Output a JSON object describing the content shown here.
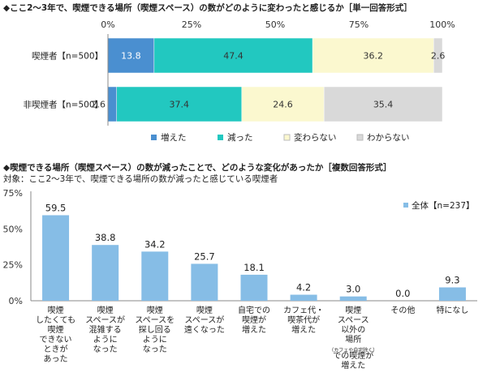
{
  "chart1": {
    "title": "◆ここ2～3年で、喫煙できる場所（喫煙スペース）の数がどのように変わったと感じるか［単一回答形式］",
    "ticks": [
      "0%",
      "25%",
      "50%",
      "75%",
      "100%"
    ],
    "legend": [
      "増えた",
      "減った",
      "変わらない",
      "わからない"
    ],
    "colors": [
      "#4a8fd0",
      "#22c8c0",
      "#fbf8cf",
      "#d9d9d9"
    ],
    "label_colors": [
      "#ffffff",
      "#333333",
      "#333333",
      "#333333"
    ]
  },
  "chart2": {
    "title": "◆喫煙できる場所（喫煙スペース）の数が減ったことで、どのような変化があったか［複数回答形式］",
    "subtitle": "対象：ここ2～3年で、喫煙できる場所の数が減ったと感じている喫煙者",
    "ticks": [
      "75%",
      "50%",
      "25%",
      "0%"
    ],
    "legend": "全体【n=237】",
    "bar_color": "#86bde6"
  },
  "chart_data": [
    {
      "type": "bar",
      "orientation": "horizontal-stacked-100",
      "title": "◆ここ2～3年で、喫煙できる場所（喫煙スペース）の数がどのように変わったと感じるか［単一回答形式］",
      "categories": [
        "喫煙者【n=500】",
        "非喫煙者【n=500】"
      ],
      "series": [
        {
          "name": "増えた",
          "values": [
            13.8,
            2.6
          ]
        },
        {
          "name": "減った",
          "values": [
            47.4,
            37.4
          ]
        },
        {
          "name": "変わらない",
          "values": [
            36.2,
            24.6
          ]
        },
        {
          "name": "わからない",
          "values": [
            2.6,
            35.4
          ]
        }
      ],
      "xlim": [
        0,
        100
      ],
      "legend_position": "bottom"
    },
    {
      "type": "bar",
      "title": "◆喫煙できる場所（喫煙スペース）の数が減ったことで、どのような変化があったか［複数回答形式］",
      "subtitle": "対象：ここ2～3年で、喫煙できる場所の数が減ったと感じている喫煙者",
      "categories": [
        [
          "喫煙",
          "したくても",
          "喫煙",
          "できない",
          "ときが",
          "あった"
        ],
        [
          "喫煙",
          "スペースが",
          "混雑する",
          "ように",
          "なった"
        ],
        [
          "喫煙",
          "スペースを",
          "探し回る",
          "ように",
          "なった"
        ],
        [
          "喫煙",
          "スペースが",
          "遠くなった"
        ],
        [
          "自宅での",
          "喫煙が",
          "増えた"
        ],
        [
          "カフェ代・",
          "喫茶代が",
          "増えた"
        ],
        [
          "喫煙",
          "スペース",
          "以外の",
          "場所",
          "（カフェや自宅除く）",
          "での喫煙が",
          "増えた"
        ],
        [
          "その他"
        ],
        [
          "特になし"
        ]
      ],
      "series": [
        {
          "name": "全体【n=237】",
          "values": [
            59.5,
            38.8,
            34.2,
            25.7,
            18.1,
            4.2,
            3.0,
            0.0,
            9.3
          ]
        }
      ],
      "value_labels": [
        "59.5",
        "38.8",
        "34.2",
        "25.7",
        "18.1",
        "4.2",
        "3.0",
        "0.0",
        "9.3"
      ],
      "ylim": [
        0,
        75
      ],
      "grid": false,
      "legend_position": "top-right"
    }
  ]
}
